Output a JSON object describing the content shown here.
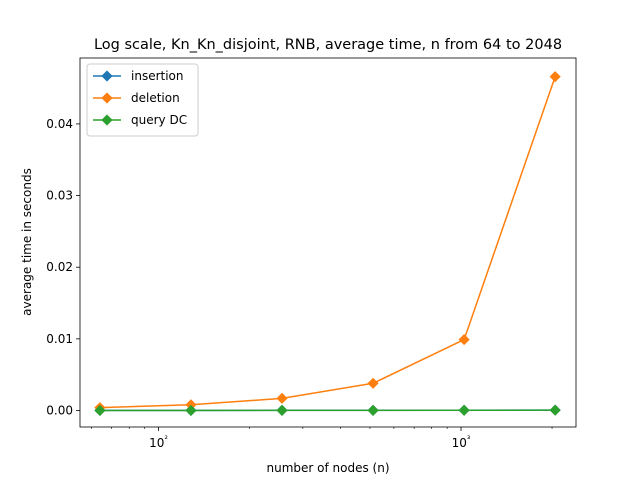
{
  "chart_data": {
    "type": "line",
    "title": "Log scale, Kn_Kn_disjoint, RNB, average time, n from 64 to 2048",
    "xlabel": "number of nodes (n)",
    "ylabel": "average time in seconds",
    "xscale": "log",
    "xlim": [
      55,
      2400
    ],
    "ylim": [
      -0.0023,
      0.0492
    ],
    "x_ticks": [
      100,
      1000
    ],
    "x_tick_labels": [
      "10²",
      "10³"
    ],
    "y_ticks": [
      0.0,
      0.01,
      0.02,
      0.03,
      0.04
    ],
    "y_tick_labels": [
      "0.00",
      "0.01",
      "0.02",
      "0.03",
      "0.04"
    ],
    "grid": false,
    "legend_position": "top-left",
    "x": [
      64,
      128,
      256,
      512,
      1024,
      2048
    ],
    "series": [
      {
        "name": "insertion",
        "color": "#1f77b4",
        "marker": "diamond",
        "values": [
          2e-05,
          2e-05,
          3e-05,
          3e-05,
          4e-05,
          6e-05
        ]
      },
      {
        "name": "deletion",
        "color": "#ff7f0e",
        "marker": "diamond",
        "values": [
          0.0004,
          0.0008,
          0.0017,
          0.0038,
          0.0099,
          0.0466
        ]
      },
      {
        "name": "query DC",
        "color": "#2ca02c",
        "marker": "diamond",
        "values": [
          1e-05,
          1e-05,
          2e-05,
          2e-05,
          3e-05,
          5e-05
        ]
      }
    ]
  }
}
